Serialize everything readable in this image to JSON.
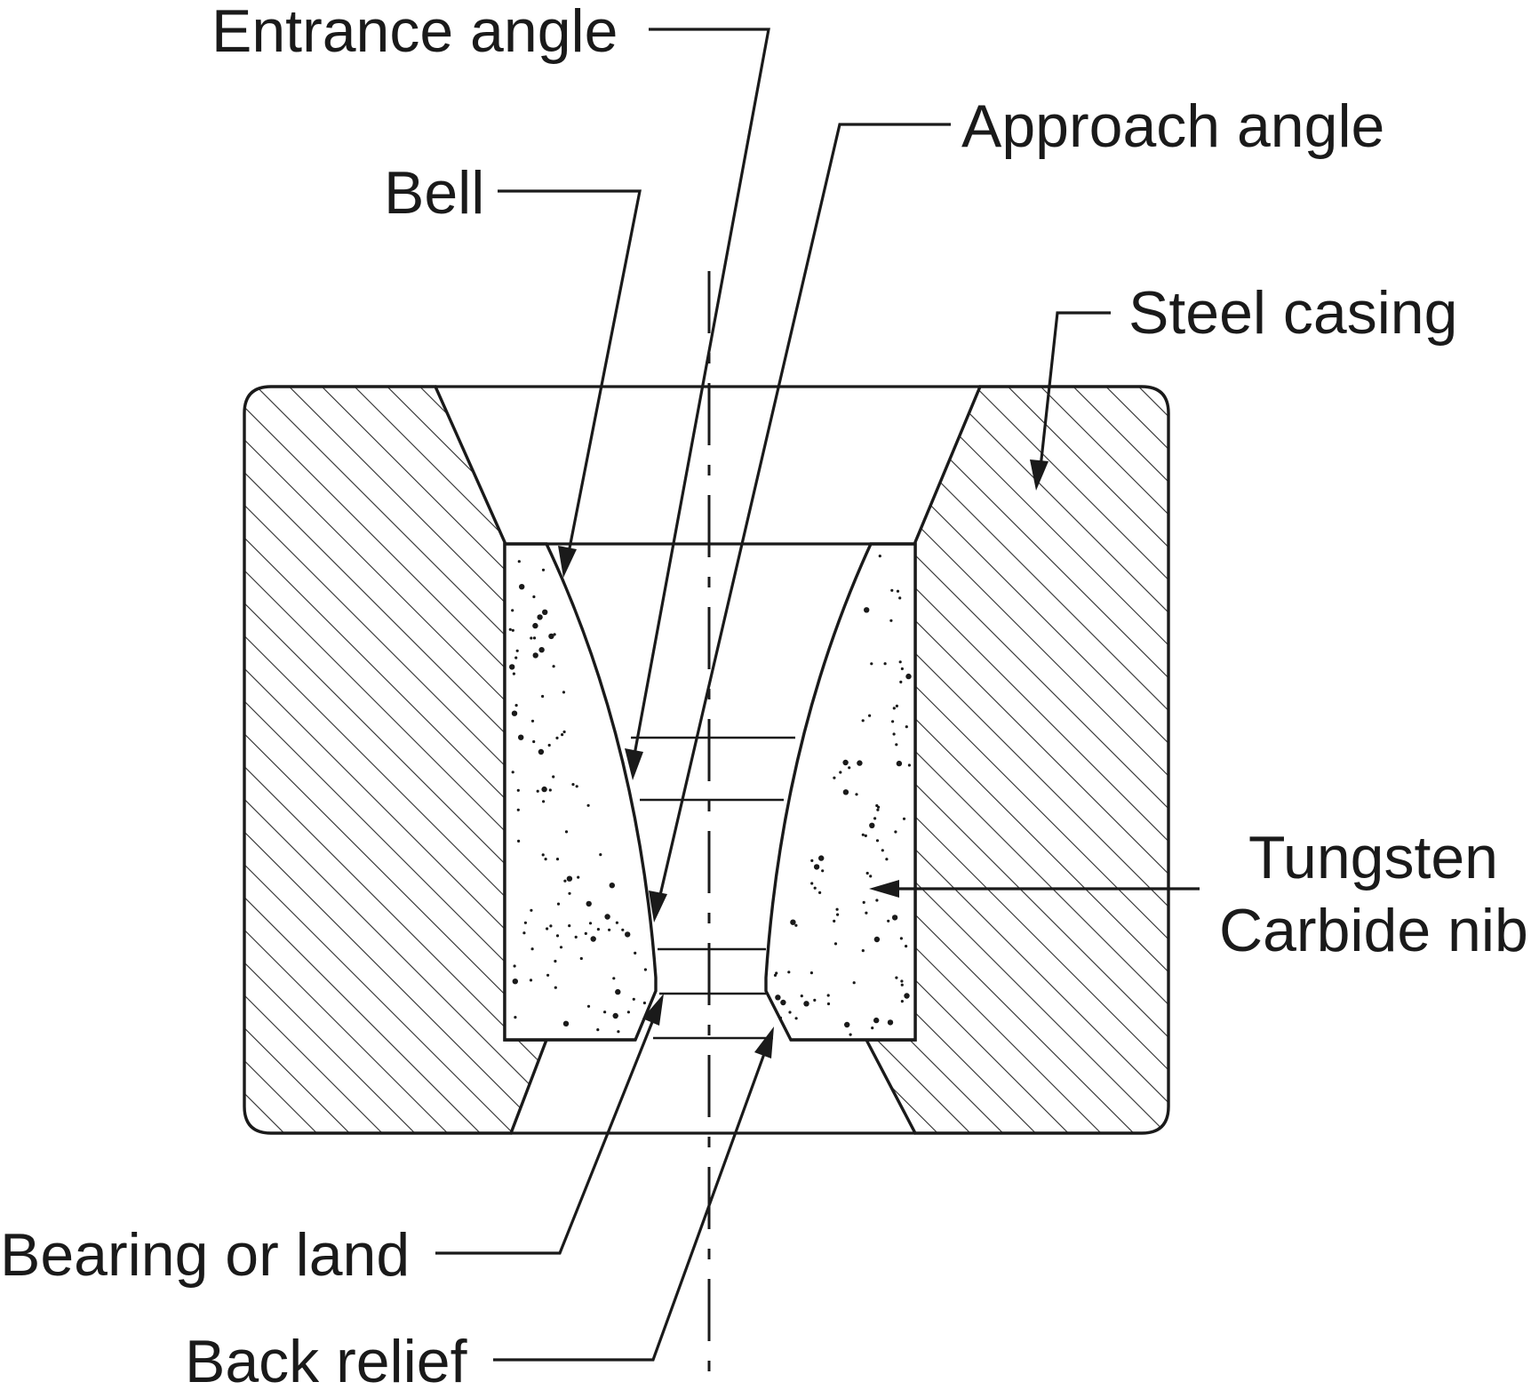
{
  "labels": {
    "entrance_angle": "Entrance angle",
    "approach_angle": "Approach angle",
    "bell": "Bell",
    "steel_casing": "Steel casing",
    "tungsten_line1": "Tungsten",
    "tungsten_line2": "Carbide nib",
    "bearing_or_land": "Bearing or land",
    "back_relief": "Back relief"
  },
  "colors": {
    "ink": "#1a1a1a",
    "background": "#ffffff"
  }
}
